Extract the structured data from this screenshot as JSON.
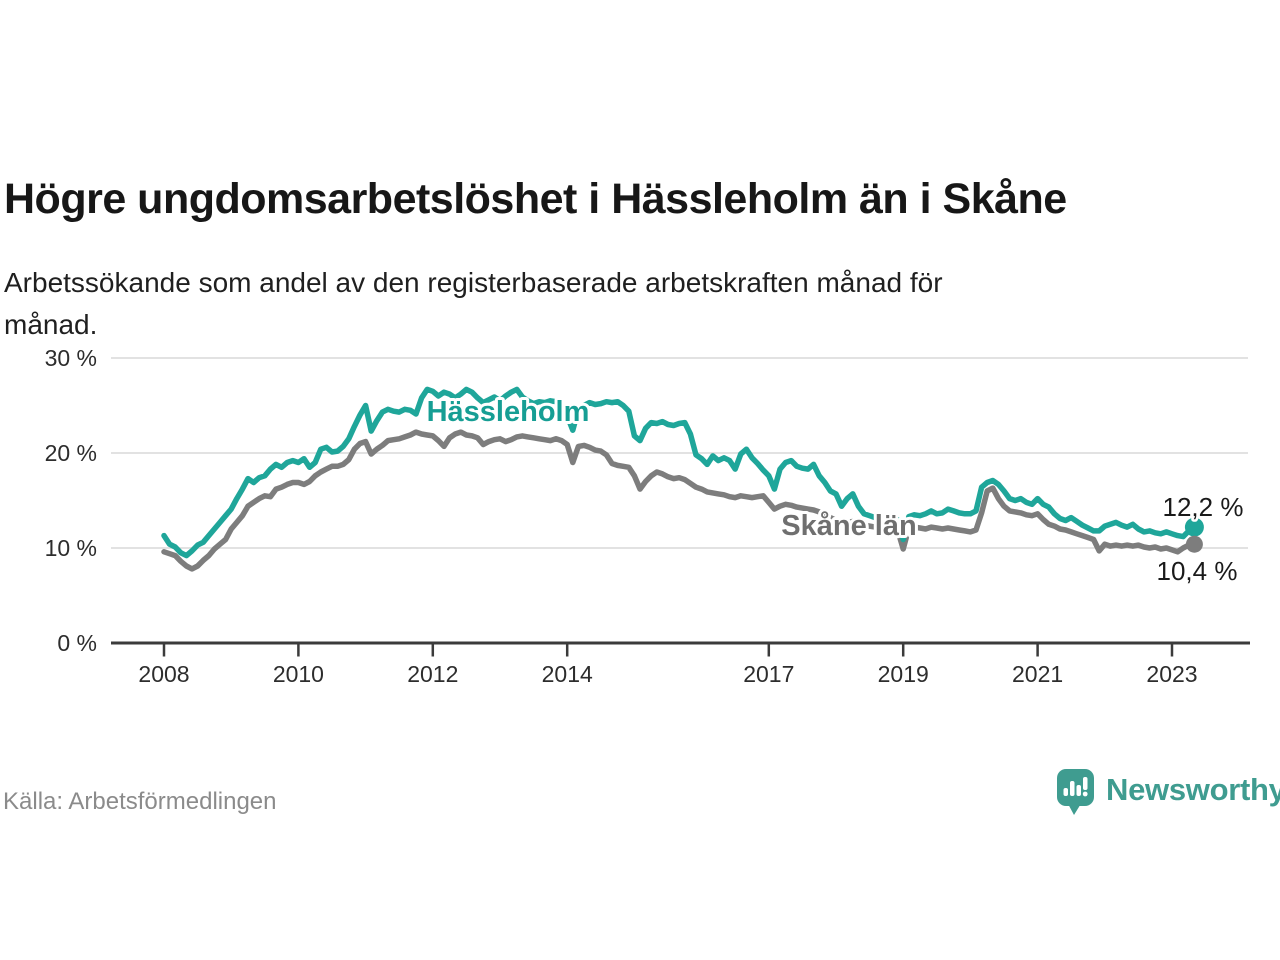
{
  "title": "Högre ungdomsarbetslöshet i Hässleholm än i Skåne",
  "subtitle_lines": [
    "Arbetssökande som andel av den registerbaserade arbetskraften månad för",
    "månad."
  ],
  "source": "Källa: Arbetsförmedlingen",
  "brand": {
    "name": "Newsworthy",
    "logo_color": "#3f9c90",
    "logo_icon": "speech-bubble-bar-chart"
  },
  "chart_data": {
    "type": "line",
    "unit": "%",
    "x_start": "2008-01",
    "x_end": "2023-05",
    "grid": true,
    "ylim": [
      0,
      31
    ],
    "y_ticks": [
      0,
      10,
      20,
      30
    ],
    "y_tick_labels": [
      "0 %",
      "10 %",
      "20 %",
      "30 %"
    ],
    "x_tick_years": [
      2008,
      2010,
      2012,
      2014,
      2017,
      2019,
      2021,
      2023
    ],
    "x_tick_labels": [
      "2008",
      "2010",
      "2012",
      "2014",
      "2017",
      "2019",
      "2021",
      "2023"
    ],
    "colors": {
      "grid": "#d9d9d9",
      "axis": "#3b3b3b",
      "tick_text": "#2d2d2d",
      "value_text": "#1a1a1a"
    },
    "series": [
      {
        "name": "Hässleholm",
        "color": "#1fa69a",
        "label_color": "#169e94",
        "end_label": "12,2 %",
        "end_value": 12.2,
        "values": [
          11.3,
          10.4,
          10.1,
          9.5,
          9.2,
          9.7,
          10.3,
          10.6,
          11.3,
          12.0,
          12.7,
          13.4,
          14.1,
          15.2,
          16.2,
          17.3,
          16.9,
          17.4,
          17.6,
          18.3,
          18.8,
          18.5,
          19.0,
          19.2,
          19.0,
          19.4,
          18.5,
          19.0,
          20.4,
          20.6,
          20.1,
          20.2,
          20.7,
          21.5,
          22.8,
          24.0,
          25.0,
          22.3,
          23.4,
          24.3,
          24.6,
          24.4,
          24.3,
          24.6,
          24.5,
          24.1,
          25.8,
          26.7,
          26.5,
          26.0,
          26.4,
          26.2,
          25.8,
          26.2,
          26.7,
          26.4,
          25.8,
          25.3,
          25.6,
          25.9,
          25.5,
          26.0,
          26.4,
          26.7,
          25.9,
          25.5,
          25.2,
          25.4,
          25.3,
          25.5,
          25.4,
          25.0,
          23.9,
          22.4,
          24.6,
          25.0,
          25.3,
          25.1,
          25.2,
          25.4,
          25.3,
          25.4,
          25.0,
          24.4,
          21.8,
          21.3,
          22.6,
          23.2,
          23.1,
          23.3,
          23.0,
          22.9,
          23.1,
          23.2,
          22.0,
          19.8,
          19.4,
          18.8,
          19.7,
          19.2,
          19.5,
          19.2,
          18.3,
          19.9,
          20.4,
          19.5,
          18.9,
          18.2,
          17.6,
          16.2,
          18.3,
          19.0,
          19.2,
          18.6,
          18.4,
          18.3,
          18.8,
          17.6,
          16.9,
          16.0,
          15.7,
          14.4,
          15.2,
          15.7,
          14.4,
          13.6,
          13.4,
          13.2,
          13.4,
          13.1,
          12.9,
          13.0,
          10.9,
          13.3,
          13.5,
          13.4,
          13.6,
          13.9,
          13.6,
          13.7,
          14.1,
          13.9,
          13.7,
          13.6,
          13.6,
          13.9,
          16.4,
          16.9,
          17.1,
          16.7,
          16.0,
          15.2,
          15.0,
          15.2,
          14.8,
          14.6,
          15.2,
          14.6,
          14.3,
          13.6,
          13.1,
          12.9,
          13.2,
          12.8,
          12.4,
          12.1,
          11.8,
          11.8,
          12.3,
          12.5,
          12.7,
          12.4,
          12.2,
          12.5,
          12.0,
          11.7,
          11.8,
          11.6,
          11.5,
          11.7,
          11.5,
          11.3,
          11.2,
          11.8,
          12.2
        ]
      },
      {
        "name": "Skåne län",
        "color": "#7d7d7d",
        "label_color": "#6f6f6f",
        "end_label": "10,4 %",
        "end_value": 10.4,
        "values": [
          9.6,
          9.4,
          9.2,
          8.6,
          8.1,
          7.8,
          8.1,
          8.7,
          9.2,
          9.9,
          10.4,
          10.9,
          12.0,
          12.7,
          13.4,
          14.4,
          14.8,
          15.2,
          15.5,
          15.4,
          16.2,
          16.4,
          16.7,
          16.9,
          16.9,
          16.7,
          17.0,
          17.6,
          18.0,
          18.3,
          18.6,
          18.6,
          18.8,
          19.3,
          20.4,
          21.0,
          21.2,
          19.9,
          20.4,
          20.8,
          21.3,
          21.4,
          21.5,
          21.7,
          21.9,
          22.2,
          22.0,
          21.9,
          21.8,
          21.3,
          20.7,
          21.6,
          22.0,
          22.2,
          21.9,
          21.8,
          21.6,
          20.9,
          21.2,
          21.4,
          21.5,
          21.2,
          21.4,
          21.7,
          21.8,
          21.7,
          21.6,
          21.5,
          21.4,
          21.3,
          21.5,
          21.3,
          20.9,
          19.0,
          20.7,
          20.8,
          20.6,
          20.3,
          20.2,
          19.8,
          18.9,
          18.7,
          18.6,
          18.5,
          17.6,
          16.2,
          17.0,
          17.6,
          18.0,
          17.8,
          17.5,
          17.3,
          17.4,
          17.2,
          16.8,
          16.4,
          16.2,
          15.9,
          15.8,
          15.7,
          15.6,
          15.4,
          15.3,
          15.5,
          15.4,
          15.3,
          15.4,
          15.5,
          14.8,
          14.1,
          14.4,
          14.6,
          14.5,
          14.3,
          14.2,
          14.1,
          14.0,
          13.8,
          13.5,
          13.2,
          12.9,
          12.5,
          12.7,
          12.8,
          12.6,
          12.4,
          12.3,
          12.2,
          12.3,
          12.2,
          12.1,
          11.9,
          9.9,
          12.1,
          12.2,
          12.1,
          12.0,
          12.2,
          12.1,
          12.0,
          12.1,
          12.0,
          11.9,
          11.8,
          11.7,
          11.9,
          13.7,
          16.0,
          16.3,
          15.2,
          14.4,
          13.9,
          13.8,
          13.7,
          13.5,
          13.4,
          13.6,
          13.0,
          12.5,
          12.3,
          12.0,
          11.9,
          11.7,
          11.5,
          11.3,
          11.1,
          10.9,
          9.7,
          10.4,
          10.2,
          10.3,
          10.2,
          10.3,
          10.2,
          10.3,
          10.1,
          10.0,
          10.1,
          9.9,
          10.0,
          9.8,
          9.6,
          10.0,
          10.3,
          10.4
        ]
      }
    ]
  }
}
